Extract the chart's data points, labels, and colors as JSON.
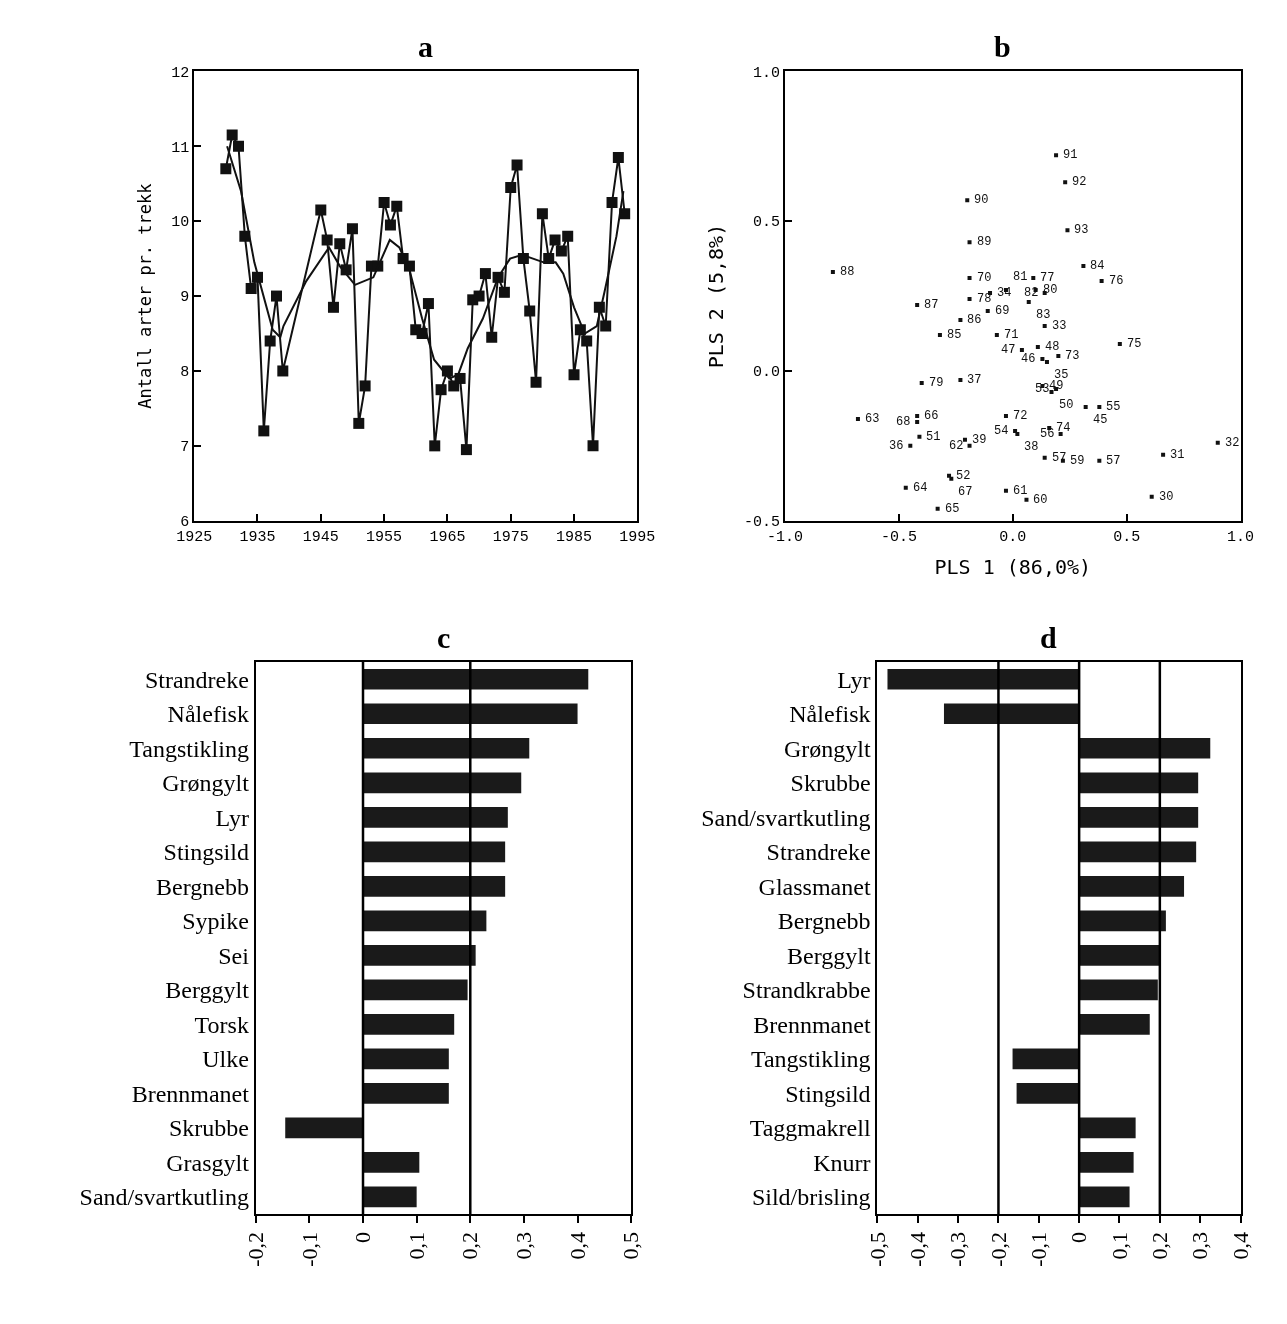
{
  "chart_data": [
    {
      "type": "line",
      "title": "a",
      "ylabel": "Antall arter pr. trekk",
      "xlim": [
        1925,
        1995
      ],
      "xticks": [
        1925,
        1935,
        1945,
        1955,
        1965,
        1975,
        1985,
        1995
      ],
      "ylim": [
        6,
        12
      ],
      "yticks": [
        6,
        7,
        8,
        9,
        10,
        11,
        12
      ],
      "series": [
        {
          "color": "#111111",
          "marker": "square",
          "x": [
            1930,
            1931,
            1932,
            1933,
            1934,
            1935,
            1936,
            1937,
            1938,
            1939,
            1945,
            1946,
            1947,
            1948,
            1949,
            1950,
            1951,
            1952,
            1953,
            1954,
            1955,
            1956,
            1957,
            1958,
            1959,
            1960,
            1961,
            1962,
            1963,
            1964,
            1965,
            1966,
            1967,
            1968,
            1969,
            1970,
            1971,
            1972,
            1973,
            1974,
            1975,
            1976,
            1977,
            1978,
            1979,
            1980,
            1981,
            1982,
            1983,
            1984,
            1985,
            1986,
            1987,
            1988,
            1989,
            1990,
            1991,
            1992,
            1993
          ],
          "values": [
            10.7,
            11.15,
            11.0,
            9.8,
            9.1,
            9.25,
            7.2,
            8.4,
            9.0,
            8.0,
            10.15,
            9.75,
            8.85,
            9.7,
            9.35,
            9.9,
            7.3,
            7.8,
            9.4,
            9.4,
            10.25,
            9.95,
            10.2,
            9.5,
            9.4,
            8.55,
            8.5,
            8.9,
            7.0,
            7.75,
            8.0,
            7.8,
            7.9,
            6.95,
            8.95,
            9.0,
            9.3,
            8.45,
            9.25,
            9.05,
            10.45,
            10.75,
            9.5,
            8.8,
            7.85,
            10.1,
            9.5,
            9.75,
            9.6,
            9.8,
            7.95,
            8.55,
            8.4,
            7.0,
            8.85,
            8.6,
            10.25,
            10.85,
            10.1
          ]
        },
        {
          "color": "#111111",
          "marker": "none",
          "x": [
            1930.2,
            1932.4,
            1934.5,
            1937.4,
            1938.6,
            1939.1,
            1942.7,
            1946.3,
            1948,
            1950.4,
            1953.3,
            1955.9,
            1957.4,
            1959,
            1961,
            1962.9,
            1965.3,
            1966.7,
            1968.2,
            1970.6,
            1973,
            1974.9,
            1976.8,
            1980.2,
            1982.1,
            1983.3,
            1985,
            1986.7,
            1988.6,
            1989.8,
            1991.7,
            1992.8
          ],
          "values": [
            11.0,
            10.4,
            9.45,
            8.55,
            8.45,
            8.6,
            9.2,
            9.65,
            9.4,
            9.15,
            9.25,
            9.75,
            9.65,
            9.35,
            8.7,
            8.15,
            7.9,
            7.95,
            8.3,
            8.7,
            9.25,
            9.5,
            9.55,
            9.45,
            9.45,
            9.3,
            8.85,
            8.5,
            8.6,
            9.05,
            9.8,
            10.4
          ]
        }
      ]
    },
    {
      "type": "scatter",
      "title": "b",
      "xlabel": "PLS 1 (86,0%)",
      "ylabel": "PLS 2 (5,8%)",
      "xlim": [
        -1.0,
        1.0
      ],
      "xticks": [
        {
          "value": -1.0,
          "label": "-1.0"
        },
        {
          "value": -0.5,
          "label": "-0.5"
        },
        {
          "value": 0,
          "label": "0.0"
        },
        {
          "value": 0.5,
          "label": "0.5"
        },
        {
          "value": 1.0,
          "label": "1.0"
        }
      ],
      "ylim": [
        -0.5,
        1.0
      ],
      "yticks": [
        {
          "value": -0.5,
          "label": "-0.5"
        },
        {
          "value": 0,
          "label": "0.0"
        },
        {
          "value": 0.5,
          "label": "0.5"
        },
        {
          "value": 1.0,
          "label": "1.0"
        }
      ],
      "series": [
        {
          "color": "#111111",
          "marker": "square",
          "x": [
            0.19,
            0.23,
            -0.2,
            0.24,
            -0.19,
            -0.79,
            0.31,
            0.09,
            0.39,
            -0.19,
            0.1,
            0.14,
            0.07,
            -0.1,
            -0.03,
            -0.19,
            -0.42,
            -0.11,
            -0.23,
            0.14,
            -0.32,
            -0.07,
            0.47,
            0.11,
            0.04,
            0.2,
            0.13,
            0.15,
            -0.4,
            -0.23,
            0.13,
            0.19,
            0.17,
            0.38,
            0.32,
            -0.68,
            -0.42,
            -0.03,
            0.16,
            0.21,
            0.01,
            0.02,
            -0.42,
            -0.41,
            -0.45,
            -0.21,
            -0.19,
            0.14,
            0.22,
            0.38,
            0.66,
            0.9,
            -0.47,
            -0.28,
            -0.27,
            -0.03,
            0.06,
            0.61,
            -0.33
          ],
          "values": [
            0.72,
            0.63,
            0.57,
            0.47,
            0.43,
            0.33,
            0.35,
            0.31,
            0.3,
            0.31,
            0.27,
            0.26,
            0.23,
            0.26,
            0.27,
            0.24,
            0.22,
            0.2,
            0.17,
            0.15,
            0.12,
            0.12,
            0.09,
            0.08,
            0.07,
            0.05,
            0.04,
            0.03,
            -0.04,
            -0.03,
            -0.05,
            -0.06,
            -0.07,
            -0.12,
            -0.12,
            -0.16,
            -0.15,
            -0.15,
            -0.19,
            -0.21,
            -0.2,
            -0.21,
            -0.17,
            -0.22,
            -0.25,
            -0.23,
            -0.25,
            -0.29,
            -0.3,
            -0.3,
            -0.28,
            -0.24,
            -0.39,
            -0.35,
            -0.36,
            -0.4,
            -0.43,
            -0.42,
            -0.46
          ]
        }
      ],
      "annotations": [
        {
          "text": "91",
          "x": 0.19,
          "y": 0.72
        },
        {
          "text": "92",
          "x": 0.23,
          "y": 0.63
        },
        {
          "text": "90",
          "x": -0.2,
          "y": 0.57
        },
        {
          "text": "93",
          "x": 0.24,
          "y": 0.47
        },
        {
          "text": "89",
          "x": -0.19,
          "y": 0.43
        },
        {
          "text": "88",
          "x": -0.79,
          "y": 0.33
        },
        {
          "text": "84",
          "x": 0.31,
          "y": 0.35
        },
        {
          "text": "77",
          "x": 0.09,
          "y": 0.31
        },
        {
          "text": "76",
          "x": 0.39,
          "y": 0.3
        },
        {
          "text": "70",
          "x": -0.19,
          "y": 0.31
        },
        {
          "text": "80",
          "x": 0.1,
          "y": 0.27
        },
        {
          "text": "82",
          "x": 0.14,
          "y": 0.26
        },
        {
          "text": "83",
          "x": 0.07,
          "y": 0.23
        },
        {
          "text": "34",
          "x": -0.1,
          "y": 0.26
        },
        {
          "text": "81",
          "x": -0.03,
          "y": 0.27
        },
        {
          "text": "78",
          "x": -0.19,
          "y": 0.24
        },
        {
          "text": "87",
          "x": -0.42,
          "y": 0.22
        },
        {
          "text": "69",
          "x": -0.11,
          "y": 0.2
        },
        {
          "text": "86",
          "x": -0.23,
          "y": 0.17
        },
        {
          "text": "33",
          "x": 0.14,
          "y": 0.15
        },
        {
          "text": "85",
          "x": -0.32,
          "y": 0.12
        },
        {
          "text": "71",
          "x": -0.07,
          "y": 0.12
        },
        {
          "text": "75",
          "x": 0.47,
          "y": 0.09
        },
        {
          "text": "48",
          "x": 0.11,
          "y": 0.08
        },
        {
          "text": "47",
          "x": 0.04,
          "y": 0.07
        },
        {
          "text": "73",
          "x": 0.2,
          "y": 0.05
        },
        {
          "text": "46",
          "x": 0.13,
          "y": 0.04
        },
        {
          "text": "35",
          "x": 0.15,
          "y": 0.03
        },
        {
          "text": "79",
          "x": -0.4,
          "y": -0.04
        },
        {
          "text": "37",
          "x": -0.23,
          "y": -0.03
        },
        {
          "text": "49",
          "x": 0.13,
          "y": -0.05
        },
        {
          "text": "53",
          "x": 0.19,
          "y": -0.06
        },
        {
          "text": "50",
          "x": 0.17,
          "y": -0.07
        },
        {
          "text": "55",
          "x": 0.38,
          "y": -0.12
        },
        {
          "text": "45",
          "x": 0.32,
          "y": -0.12
        },
        {
          "text": "63",
          "x": -0.68,
          "y": -0.16
        },
        {
          "text": "66",
          "x": -0.42,
          "y": -0.15
        },
        {
          "text": "72",
          "x": -0.03,
          "y": -0.15
        },
        {
          "text": "74",
          "x": 0.16,
          "y": -0.19
        },
        {
          "text": "56",
          "x": 0.21,
          "y": -0.21
        },
        {
          "text": "54",
          "x": 0.01,
          "y": -0.2
        },
        {
          "text": "38",
          "x": 0.02,
          "y": -0.21
        },
        {
          "text": "68",
          "x": -0.42,
          "y": -0.17
        },
        {
          "text": "51",
          "x": -0.41,
          "y": -0.22
        },
        {
          "text": "36",
          "x": -0.45,
          "y": -0.25
        },
        {
          "text": "39",
          "x": -0.21,
          "y": -0.23
        },
        {
          "text": "62",
          "x": -0.19,
          "y": -0.25
        },
        {
          "text": "57",
          "x": 0.14,
          "y": -0.29
        },
        {
          "text": "59",
          "x": 0.22,
          "y": -0.3
        },
        {
          "text": "57",
          "x": 0.38,
          "y": -0.3
        },
        {
          "text": "31",
          "x": 0.66,
          "y": -0.28
        },
        {
          "text": "32",
          "x": 0.9,
          "y": -0.24
        },
        {
          "text": "64",
          "x": -0.47,
          "y": -0.39
        },
        {
          "text": "52",
          "x": -0.28,
          "y": -0.35
        },
        {
          "text": "67",
          "x": -0.27,
          "y": -0.36
        },
        {
          "text": "61",
          "x": -0.03,
          "y": -0.4
        },
        {
          "text": "60",
          "x": 0.06,
          "y": -0.43
        },
        {
          "text": "30",
          "x": 0.61,
          "y": -0.42
        },
        {
          "text": "65",
          "x": -0.33,
          "y": -0.46
        }
      ]
    },
    {
      "type": "bar",
      "orientation": "horizontal",
      "title": "c",
      "color": "#1a1a1a",
      "xlim": [
        -0.2,
        0.5
      ],
      "xticks": [
        {
          "value": -0.2,
          "label": "-0,2"
        },
        {
          "value": -0.1,
          "label": "-0,1"
        },
        {
          "value": 0,
          "label": "0"
        },
        {
          "value": 0.1,
          "label": "0,1"
        },
        {
          "value": 0.2,
          "label": "0,2"
        },
        {
          "value": 0.3,
          "label": "0,3"
        },
        {
          "value": 0.4,
          "label": "0,4"
        },
        {
          "value": 0.5,
          "label": "0,5"
        }
      ],
      "categories": [
        "Strandreke",
        "Nålefisk",
        "Tangstikling",
        "Grøngylt",
        "Lyr",
        "Stingsild",
        "Bergnebb",
        "Sypike",
        "Sei",
        "Berggylt",
        "Torsk",
        "Ulke",
        "Brennmanet",
        "Skrubbe",
        "Grasgylt",
        "Sand/svartkutling"
      ],
      "values": [
        0.42,
        0.4,
        0.31,
        0.295,
        0.27,
        0.265,
        0.265,
        0.23,
        0.21,
        0.195,
        0.17,
        0.16,
        0.16,
        -0.145,
        0.105,
        0.1
      ],
      "ref_lines": [
        {
          "axis": "x",
          "value": 0,
          "color": "#000000"
        },
        {
          "axis": "x",
          "value": 0.2,
          "color": "#000000"
        }
      ]
    },
    {
      "type": "bar",
      "orientation": "horizontal",
      "title": "d",
      "color": "#1a1a1a",
      "xlim": [
        -0.5,
        0.4
      ],
      "xticks": [
        {
          "value": -0.5,
          "label": "-0,5"
        },
        {
          "value": -0.4,
          "label": "-0,4"
        },
        {
          "value": -0.3,
          "label": "-0,3"
        },
        {
          "value": -0.2,
          "label": "-0,2"
        },
        {
          "value": -0.1,
          "label": "-0,1"
        },
        {
          "value": 0,
          "label": "0"
        },
        {
          "value": 0.1,
          "label": "0,1"
        },
        {
          "value": 0.2,
          "label": "0,2"
        },
        {
          "value": 0.3,
          "label": "0,3"
        },
        {
          "value": 0.4,
          "label": "0,4"
        }
      ],
      "categories": [
        "Lyr",
        "Nålefisk",
        "Grøngylt",
        "Skrubbe",
        "Sand/svartkutling",
        "Strandreke",
        "Glassmanet",
        "Bergnebb",
        "Berggylt",
        "Strandkrabbe",
        "Brennmanet",
        "Tangstikling",
        "Stingsild",
        "Taggmakrell",
        "Knurr",
        "Sild/brisling"
      ],
      "values": [
        -0.475,
        -0.335,
        0.325,
        0.295,
        0.295,
        0.29,
        0.26,
        0.215,
        0.2,
        0.195,
        0.175,
        -0.165,
        -0.155,
        0.14,
        0.135,
        0.125
      ],
      "ref_lines": [
        {
          "axis": "x",
          "value": -0.2,
          "color": "#000000"
        },
        {
          "axis": "x",
          "value": 0,
          "color": "#000000"
        },
        {
          "axis": "x",
          "value": 0.2,
          "color": "#000000"
        }
      ]
    }
  ]
}
